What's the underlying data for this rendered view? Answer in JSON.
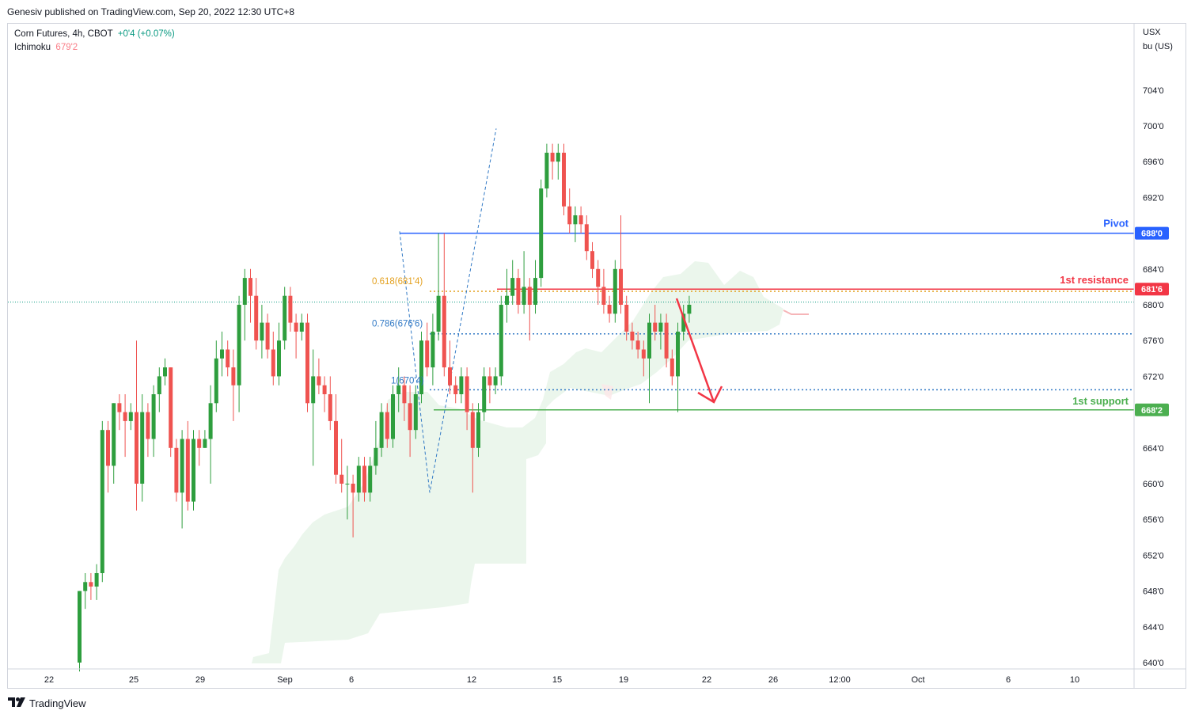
{
  "publisher_line": "Genesiv published on TradingView.com, Sep 20, 2022 12:30 UTC+8",
  "legend": {
    "symbol": "Corn Futures, 4h, CBOT",
    "change": "+0'4 (+0.07%)",
    "indicator": "Ichimoku",
    "indicator_value": "679'2"
  },
  "footer": {
    "brand": "TradingView",
    "logo_icon": "tradingview-logo-icon"
  },
  "colors": {
    "up": "#089981",
    "up_candle": "#2e9e3e",
    "down": "#ef5350",
    "pivot": "#2962ff",
    "resistance": "#f23645",
    "support": "#4caf50",
    "fib_orange": "#e39f1b",
    "fib_blue": "#3179c5",
    "cloud": "#e8f5e9"
  },
  "chart_data": {
    "type": "candlestick",
    "symbol": "Corn Futures",
    "timeframe": "4h",
    "exchange": "CBOT",
    "currency_label": [
      "USX",
      "bu (US)"
    ],
    "y_ticks": [
      "704'0",
      "700'0",
      "696'0",
      "692'0",
      "688'0",
      "684'0",
      "680'0",
      "676'0",
      "672'0",
      "668'0",
      "664'0",
      "660'0",
      "656'0",
      "652'0",
      "648'0",
      "644'0",
      "640'0"
    ],
    "y_range": [
      639,
      710
    ],
    "x_ticks": [
      "22",
      "25",
      "29",
      "Sep",
      "6",
      "12",
      "15",
      "19",
      "22",
      "26",
      "12:00",
      "Oct",
      "6",
      "10"
    ],
    "last_price": 680.3,
    "levels": [
      {
        "name": "Pivot",
        "value": 688.0,
        "badge": "688'0",
        "color": "#2962ff"
      },
      {
        "name": "1st resistance",
        "value": 681.75,
        "badge": "681'6",
        "color": "#f23645"
      },
      {
        "name": "1st support",
        "value": 668.25,
        "badge": "668'2",
        "color": "#4caf50"
      }
    ],
    "fibonacci": [
      {
        "label": "0.618(681'4)",
        "value": 681.5
      },
      {
        "label": "0.786(676'6)",
        "value": 676.75
      },
      {
        "label": "1(670'4)",
        "value": 670.5
      }
    ],
    "candles": [
      [
        640.0,
        648.0,
        639.0,
        648.0
      ],
      [
        648.0,
        650.0,
        646.0,
        649.0
      ],
      [
        649.0,
        650.0,
        647.0,
        648.5
      ],
      [
        648.5,
        651.0,
        647.0,
        650.0
      ],
      [
        650.0,
        667.0,
        649.0,
        666.0
      ],
      [
        666.0,
        667.0,
        659.0,
        662.0
      ],
      [
        662.0,
        669.0,
        660.0,
        669.0
      ],
      [
        669.0,
        670.0,
        666.0,
        668.0
      ],
      [
        668.0,
        670.0,
        663.0,
        667.0
      ],
      [
        667.0,
        669.0,
        666.0,
        668.0
      ],
      [
        668.0,
        676.0,
        657.0,
        660.0
      ],
      [
        660.0,
        670.0,
        658.0,
        668.0
      ],
      [
        668.0,
        669.0,
        663.0,
        665.0
      ],
      [
        665.0,
        671.0,
        663.0,
        670.0
      ],
      [
        670.0,
        673.0,
        668.0,
        672.0
      ],
      [
        672.0,
        674.0,
        671.0,
        673.0
      ],
      [
        673.0,
        673.0,
        663.0,
        664.0
      ],
      [
        664.0,
        665.0,
        658.0,
        659.0
      ],
      [
        659.0,
        666.0,
        655.0,
        665.0
      ],
      [
        665.0,
        667.0,
        657.0,
        658.0
      ],
      [
        658.0,
        666.0,
        657.0,
        665.0
      ],
      [
        665.0,
        666.0,
        662.0,
        664.0
      ],
      [
        664.0,
        666.0,
        664.0,
        665.0
      ],
      [
        665.0,
        671.0,
        660.0,
        669.0
      ],
      [
        669.0,
        676.0,
        668.0,
        674.0
      ],
      [
        674.0,
        677.0,
        672.0,
        675.0
      ],
      [
        675.0,
        676.0,
        672.0,
        673.0
      ],
      [
        673.0,
        675.0,
        667.0,
        671.0
      ],
      [
        671.0,
        681.0,
        668.0,
        680.0
      ],
      [
        680.0,
        684.0,
        676.0,
        683.0
      ],
      [
        683.0,
        684.0,
        678.0,
        681.0
      ],
      [
        681.0,
        683.0,
        675.0,
        676.0
      ],
      [
        676.0,
        680.0,
        674.0,
        678.0
      ],
      [
        678.0,
        679.0,
        674.0,
        675.0
      ],
      [
        675.0,
        677.0,
        671.0,
        672.0
      ],
      [
        672.0,
        678.0,
        671.0,
        676.0
      ],
      [
        676.0,
        682.0,
        675.0,
        681.0
      ],
      [
        681.0,
        682.0,
        677.0,
        678.0
      ],
      [
        678.0,
        679.0,
        674.0,
        677.0
      ],
      [
        677.0,
        679.0,
        676.0,
        678.0
      ],
      [
        678.0,
        679.0,
        668.0,
        669.0
      ],
      [
        669.0,
        675.0,
        662.0,
        672.0
      ],
      [
        672.0,
        674.0,
        670.0,
        671.0
      ],
      [
        671.0,
        672.0,
        668.0,
        670.0
      ],
      [
        670.0,
        672.0,
        666.0,
        667.0
      ],
      [
        667.0,
        670.0,
        660.0,
        661.0
      ],
      [
        661.0,
        665.0,
        659.0,
        660.0
      ],
      [
        660.0,
        662.0,
        656.0,
        660.0
      ],
      [
        660.0,
        661.0,
        654.0,
        659.0
      ],
      [
        659.0,
        663.0,
        658.0,
        662.0
      ],
      [
        662.0,
        663.0,
        658.0,
        659.0
      ],
      [
        659.0,
        663.0,
        658.0,
        662.0
      ],
      [
        662.0,
        667.0,
        661.0,
        664.0
      ],
      [
        664.0,
        669.0,
        663.0,
        668.0
      ],
      [
        668.0,
        669.0,
        664.0,
        665.0
      ],
      [
        665.0,
        671.0,
        664.0,
        670.0
      ],
      [
        670.0,
        673.0,
        668.0,
        671.0
      ],
      [
        671.0,
        672.0,
        667.0,
        669.0
      ],
      [
        669.0,
        671.0,
        663.0,
        666.0
      ],
      [
        666.0,
        671.0,
        665.0,
        670.0
      ],
      [
        670.0,
        677.0,
        669.0,
        676.0
      ],
      [
        676.0,
        678.0,
        672.0,
        673.0
      ],
      [
        673.0,
        679.0,
        671.0,
        677.0
      ],
      [
        677.0,
        688.0,
        676.0,
        681.0
      ],
      [
        681.0,
        688.0,
        672.0,
        673.0
      ],
      [
        673.0,
        676.0,
        670.0,
        671.0
      ],
      [
        671.0,
        672.0,
        669.0,
        670.0
      ],
      [
        670.0,
        673.0,
        669.0,
        672.0
      ],
      [
        672.0,
        673.0,
        666.0,
        668.0
      ],
      [
        668.0,
        669.0,
        659.0,
        664.0
      ],
      [
        664.0,
        669.0,
        663.0,
        668.0
      ],
      [
        668.0,
        673.0,
        667.0,
        672.0
      ],
      [
        672.0,
        673.0,
        669.0,
        671.0
      ],
      [
        671.0,
        673.0,
        670.0,
        672.0
      ],
      [
        672.0,
        681.0,
        671.0,
        680.0
      ],
      [
        680.0,
        684.0,
        678.0,
        681.0
      ],
      [
        681.0,
        685.0,
        680.0,
        683.0
      ],
      [
        683.0,
        684.0,
        679.0,
        680.0
      ],
      [
        680.0,
        686.0,
        679.0,
        682.0
      ],
      [
        682.0,
        683.0,
        676.0,
        680.0
      ],
      [
        680.0,
        685.0,
        679.0,
        683.0
      ],
      [
        683.0,
        694.0,
        682.0,
        693.0
      ],
      [
        693.0,
        698.0,
        692.0,
        697.0
      ],
      [
        697.0,
        698.0,
        694.0,
        696.0
      ],
      [
        696.0,
        698.0,
        694.0,
        697.0
      ],
      [
        697.0,
        698.0,
        690.0,
        691.0
      ],
      [
        691.0,
        693.0,
        688.0,
        689.0
      ],
      [
        689.0,
        691.0,
        687.0,
        690.0
      ],
      [
        690.0,
        691.0,
        688.0,
        689.0
      ],
      [
        689.0,
        690.0,
        685.0,
        686.0
      ],
      [
        686.0,
        687.0,
        683.0,
        684.0
      ],
      [
        684.0,
        685.0,
        680.0,
        682.0
      ],
      [
        682.0,
        684.0,
        679.0,
        680.0
      ],
      [
        680.0,
        681.0,
        678.0,
        679.0
      ],
      [
        679.0,
        685.0,
        678.0,
        684.0
      ],
      [
        684.0,
        690.0,
        679.0,
        680.0
      ],
      [
        680.0,
        681.0,
        676.0,
        677.0
      ],
      [
        677.0,
        678.0,
        675.0,
        676.0
      ],
      [
        676.0,
        677.0,
        674.0,
        675.0
      ],
      [
        675.0,
        676.0,
        672.0,
        674.0
      ],
      [
        674.0,
        679.0,
        669.0,
        678.0
      ],
      [
        678.0,
        680.0,
        676.0,
        677.0
      ],
      [
        677.0,
        679.0,
        675.0,
        678.0
      ],
      [
        678.0,
        679.0,
        673.0,
        674.0
      ],
      [
        674.0,
        675.0,
        671.0,
        672.0
      ],
      [
        672.0,
        678.0,
        668.0,
        677.0
      ],
      [
        677.0,
        680.0,
        676.0,
        679.0
      ],
      [
        679.0,
        681.0,
        678.0,
        680.0
      ]
    ]
  }
}
